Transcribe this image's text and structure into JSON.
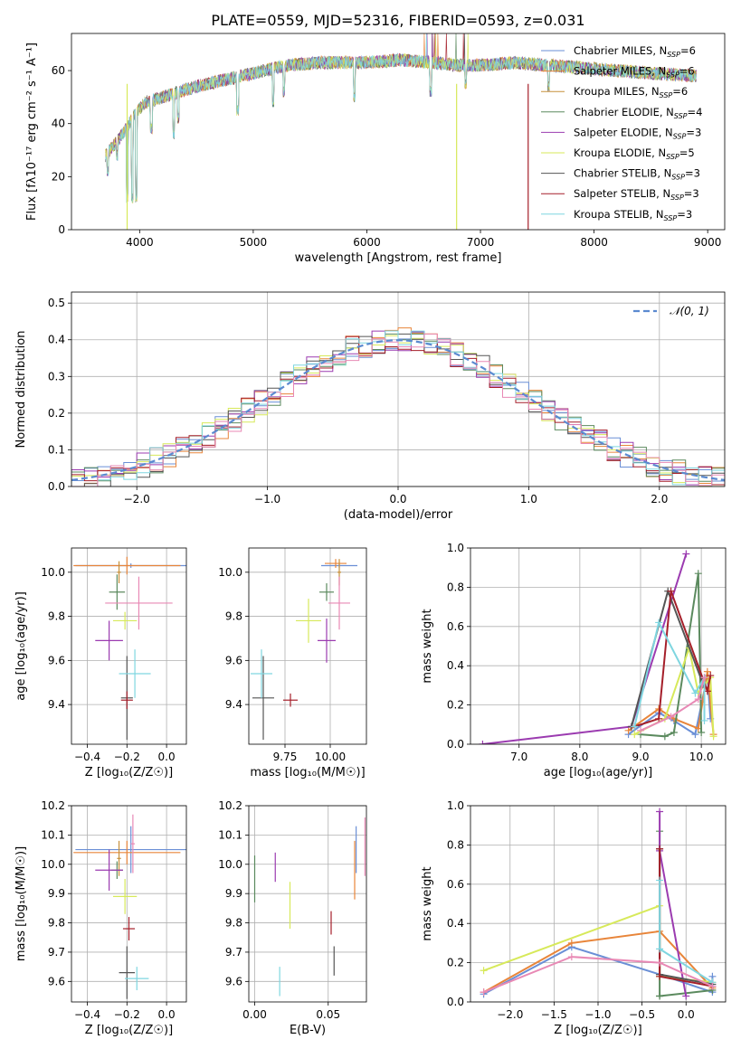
{
  "figure": {
    "title": "PLATE=0559, MJD=52316, FIBERID=0593, z=0.031"
  },
  "colors": {
    "grid": "#b0b0b0",
    "series": [
      "#6a8fd6",
      "#e8853a",
      "#c7903a",
      "#5b8a5e",
      "#9b3bb0",
      "#d7e95a",
      "#555555",
      "#a51f2a",
      "#7fd6e0",
      "#e889b5",
      "#d0d040"
    ]
  },
  "chart_data": [
    {
      "type": "line",
      "id": "spectrum",
      "xlabel": "wavelength [Angstrom, rest frame]",
      "ylabel": "Flux [fλ10⁻¹⁷ erg cm⁻² s⁻¹ A⁻¹]",
      "xlim": [
        3400,
        9150
      ],
      "ylim": [
        0,
        74
      ],
      "xticks": [
        4000,
        5000,
        6000,
        7000,
        8000,
        9000
      ],
      "yticks": [
        0,
        20,
        40,
        60
      ],
      "legend_position": "top-right",
      "legend": [
        {
          "name": "Chabrier MILES, N",
          "sub": "SSP",
          "tail": "=6"
        },
        {
          "name": "Salpeter MILES, N",
          "sub": "SSP",
          "tail": "=6"
        },
        {
          "name": "Kroupa MILES, N",
          "sub": "SSP",
          "tail": "=6"
        },
        {
          "name": "Chabrier ELODIE, N",
          "sub": "SSP",
          "tail": "=4"
        },
        {
          "name": "Salpeter ELODIE, N",
          "sub": "SSP",
          "tail": "=3"
        },
        {
          "name": "Kroupa ELODIE, N",
          "sub": "SSP",
          "tail": "=5"
        },
        {
          "name": "Chabrier STELIB, N",
          "sub": "SSP",
          "tail": "=3"
        },
        {
          "name": "Salpeter STELIB, N",
          "sub": "SSP",
          "tail": "=3"
        },
        {
          "name": "Kroupa STELIB, N",
          "sub": "SSP",
          "tail": "=3"
        }
      ],
      "continuum": {
        "x": [
          3700,
          3850,
          3950,
          4050,
          4200,
          4500,
          4800,
          5000,
          5300,
          5600,
          6000,
          6300,
          6600,
          6800,
          7000,
          7300,
          7600,
          7900,
          8200,
          8500,
          8900
        ],
        "y": [
          28,
          36,
          43,
          48,
          50,
          54,
          57,
          59,
          62,
          63,
          63,
          64,
          63,
          62,
          62,
          63,
          62,
          61,
          60,
          59,
          58
        ]
      },
      "features": [
        {
          "x": 3720,
          "y": 22
        },
        {
          "x": 3800,
          "y": 28
        },
        {
          "x": 3890,
          "y": 12
        },
        {
          "x": 3935,
          "y": 12
        },
        {
          "x": 3970,
          "y": 12
        },
        {
          "x": 4102,
          "y": 38
        },
        {
          "x": 4300,
          "y": 36
        },
        {
          "x": 4340,
          "y": 42
        },
        {
          "x": 4861,
          "y": 45
        },
        {
          "x": 5175,
          "y": 48
        },
        {
          "x": 5270,
          "y": 52
        },
        {
          "x": 5890,
          "y": 50
        },
        {
          "x": 6563,
          "y": 52
        },
        {
          "x": 6870,
          "y": 55
        },
        {
          "x": 7600,
          "y": 54
        }
      ],
      "dropouts": [
        {
          "x": 3890,
          "color_index": 5
        },
        {
          "x": 6790,
          "color_index": 5
        },
        {
          "x": 7420,
          "color_index": 7
        }
      ]
    },
    {
      "type": "step",
      "id": "residuals",
      "xlabel": "(data-model)/error",
      "ylabel": "Normed distribution",
      "xlim": [
        -2.5,
        2.5
      ],
      "ylim": [
        0,
        0.53
      ],
      "xticks": [
        -2,
        -1,
        0,
        1,
        2
      ],
      "yticks": [
        0.0,
        0.1,
        0.2,
        0.3,
        0.4,
        0.5
      ],
      "bin_width": 0.1,
      "legend": "𝒩(0, 1)",
      "legend_position": "top-right",
      "gaussian": {
        "mean": 0,
        "sigma": 1
      }
    },
    {
      "type": "scatter",
      "id": "age-vs-metallicity",
      "xlabel": "Z [log₁₀(Z/Z☉)]",
      "ylabel": "age  [log₁₀(age/yr)]",
      "xlim": [
        -0.48,
        0.1
      ],
      "ylim": [
        9.22,
        10.11
      ],
      "xticks": [
        -0.4,
        -0.2,
        0.0
      ],
      "yticks": [
        9.4,
        9.6,
        9.8,
        10.0
      ],
      "points": [
        {
          "x": -0.18,
          "y": 10.03,
          "xerr": 0.28,
          "yerr": 0.01,
          "c": 0
        },
        {
          "x": -0.2,
          "y": 10.03,
          "xerr": 0.27,
          "yerr": 0.04,
          "c": 1
        },
        {
          "x": -0.24,
          "y": 10.0,
          "xerr": 0.01,
          "yerr": 0.05,
          "c": 2
        },
        {
          "x": -0.25,
          "y": 9.91,
          "xerr": 0.04,
          "yerr": 0.08,
          "c": 3
        },
        {
          "x": -0.29,
          "y": 9.69,
          "xerr": 0.07,
          "yerr": 0.09,
          "c": 4
        },
        {
          "x": -0.21,
          "y": 9.78,
          "xerr": 0.06,
          "yerr": 0.04,
          "c": 5
        },
        {
          "x": -0.2,
          "y": 9.43,
          "xerr": 0.03,
          "yerr": 0.19,
          "c": 6
        },
        {
          "x": -0.2,
          "y": 9.42,
          "xerr": 0.03,
          "yerr": 0.04,
          "c": 7
        },
        {
          "x": -0.16,
          "y": 9.54,
          "xerr": 0.08,
          "yerr": 0.11,
          "c": 8
        },
        {
          "x": -0.14,
          "y": 9.86,
          "xerr": 0.17,
          "yerr": 0.12,
          "c": 9
        }
      ]
    },
    {
      "type": "scatter",
      "id": "age-vs-mass",
      "xlabel": "mass [log₁₀(M/M☉)]",
      "ylabel": "",
      "xlim": [
        9.55,
        10.2
      ],
      "ylim": [
        9.22,
        10.11
      ],
      "xticks": [
        9.75,
        10.0
      ],
      "tick_labels": [
        "9.75",
        "10.00"
      ],
      "yticks": [
        9.4,
        9.6,
        9.8,
        10.0
      ],
      "points": [
        {
          "x": 10.05,
          "y": 10.03,
          "xerr": 0.1,
          "yerr": 0.01,
          "c": 0
        },
        {
          "x": 10.03,
          "y": 10.04,
          "xerr": 0.06,
          "yerr": 0.02,
          "c": 1
        },
        {
          "x": 10.05,
          "y": 10.0,
          "xerr": 0.01,
          "yerr": 0.06,
          "c": 2
        },
        {
          "x": 9.98,
          "y": 9.91,
          "xerr": 0.04,
          "yerr": 0.04,
          "c": 3
        },
        {
          "x": 9.98,
          "y": 9.69,
          "xerr": 0.05,
          "yerr": 0.1,
          "c": 4
        },
        {
          "x": 9.88,
          "y": 9.78,
          "xerr": 0.07,
          "yerr": 0.1,
          "c": 5
        },
        {
          "x": 9.63,
          "y": 9.43,
          "xerr": 0.06,
          "yerr": 0.19,
          "c": 6
        },
        {
          "x": 9.78,
          "y": 9.42,
          "xerr": 0.04,
          "yerr": 0.03,
          "c": 7
        },
        {
          "x": 9.62,
          "y": 9.54,
          "xerr": 0.06,
          "yerr": 0.11,
          "c": 8
        },
        {
          "x": 10.05,
          "y": 9.86,
          "xerr": 0.06,
          "yerr": 0.12,
          "c": 9
        }
      ]
    },
    {
      "type": "line",
      "id": "mass-weight-vs-age",
      "xlabel": "age  [log₁₀(age/yr)]",
      "ylabel": "mass weight",
      "xlim": [
        6.2,
        10.4
      ],
      "ylim": [
        0,
        1.0
      ],
      "xticks": [
        7,
        8,
        9,
        10
      ],
      "yticks": [
        0.0,
        0.2,
        0.4,
        0.6,
        0.8,
        1.0
      ],
      "series": [
        {
          "c": 0,
          "x": [
            8.8,
            9.3,
            9.55,
            9.9,
            10.1,
            10.15
          ],
          "y": [
            0.05,
            0.16,
            0.12,
            0.05,
            0.35,
            0.13
          ]
        },
        {
          "c": 1,
          "x": [
            8.8,
            9.3,
            9.55,
            9.95,
            10.1,
            10.2
          ],
          "y": [
            0.07,
            0.18,
            0.13,
            0.08,
            0.37,
            0.05
          ]
        },
        {
          "c": 3,
          "x": [
            9.0,
            9.4,
            9.55,
            9.95,
            10.0
          ],
          "y": [
            0.05,
            0.04,
            0.06,
            0.87,
            0.06
          ]
        },
        {
          "c": 4,
          "x": [
            6.4,
            8.85,
            9.75
          ],
          "y": [
            0.0,
            0.09,
            0.97
          ]
        },
        {
          "c": 5,
          "x": [
            8.9,
            9.4,
            9.8,
            9.95,
            10.15,
            10.2
          ],
          "y": [
            0.05,
            0.13,
            0.49,
            0.26,
            0.34,
            0.04
          ]
        },
        {
          "c": 6,
          "x": [
            8.85,
            9.45,
            10.05
          ],
          "y": [
            0.09,
            0.78,
            0.29
          ]
        },
        {
          "c": 7,
          "x": [
            8.9,
            9.3,
            9.5,
            10.1,
            10.15
          ],
          "y": [
            0.09,
            0.13,
            0.78,
            0.27,
            0.35
          ]
        },
        {
          "c": 8,
          "x": [
            8.9,
            9.3,
            9.9,
            10.05,
            10.05
          ],
          "y": [
            0.09,
            0.62,
            0.26,
            0.34,
            0.12
          ]
        },
        {
          "c": 9,
          "x": [
            9.0,
            9.5,
            9.95,
            10.05
          ],
          "y": [
            0.07,
            0.14,
            0.23,
            0.34
          ]
        }
      ]
    },
    {
      "type": "scatter",
      "id": "mass-vs-metallicity",
      "xlabel": "Z [log₁₀(Z/Z☉)]",
      "ylabel": "mass [log₁₀(M/M☉)]",
      "xlim": [
        -0.48,
        0.1
      ],
      "ylim": [
        9.53,
        10.2
      ],
      "xticks": [
        -0.4,
        -0.2,
        0.0
      ],
      "yticks": [
        9.6,
        9.7,
        9.8,
        9.9,
        10.0,
        10.1,
        10.2
      ],
      "points": [
        {
          "x": -0.18,
          "y": 10.05,
          "xerr": 0.28,
          "yerr": 0.08,
          "c": 0
        },
        {
          "x": -0.2,
          "y": 10.04,
          "xerr": 0.27,
          "yerr": 0.04,
          "c": 1
        },
        {
          "x": -0.24,
          "y": 10.02,
          "xerr": 0.01,
          "yerr": 0.06,
          "c": 2
        },
        {
          "x": -0.25,
          "y": 9.98,
          "xerr": 0.03,
          "yerr": 0.03,
          "c": 3
        },
        {
          "x": -0.29,
          "y": 9.98,
          "xerr": 0.07,
          "yerr": 0.07,
          "c": 4
        },
        {
          "x": -0.21,
          "y": 9.89,
          "xerr": 0.06,
          "yerr": 0.06,
          "c": 5
        },
        {
          "x": -0.2,
          "y": 9.63,
          "xerr": 0.04,
          "yerr": 0.09,
          "c": 6
        },
        {
          "x": -0.19,
          "y": 9.78,
          "xerr": 0.03,
          "yerr": 0.04,
          "c": 7
        },
        {
          "x": -0.15,
          "y": 9.61,
          "xerr": 0.06,
          "yerr": 0.04,
          "c": 8
        },
        {
          "x": -0.17,
          "y": 10.07,
          "xerr": 0.01,
          "yerr": 0.1,
          "c": 9
        }
      ]
    },
    {
      "type": "scatter",
      "id": "mass-vs-ebv",
      "xlabel": "E(B-V)",
      "ylabel": "",
      "xlim": [
        -0.004,
        0.076
      ],
      "ylim": [
        9.53,
        10.2
      ],
      "xticks": [
        0.0,
        0.05
      ],
      "tick_labels": [
        "0.00",
        "0.05"
      ],
      "yticks": [
        9.6,
        9.7,
        9.8,
        9.9,
        10.0,
        10.1,
        10.2
      ],
      "points": [
        {
          "x": 0.069,
          "y": 10.05,
          "xerr": 0.0,
          "yerr": 0.08,
          "c": 0
        },
        {
          "x": 0.068,
          "y": 9.98,
          "xerr": 0.0,
          "yerr": 0.1,
          "c": 1
        },
        {
          "x": 0.0,
          "y": 9.95,
          "xerr": 0.0,
          "yerr": 0.08,
          "c": 3
        },
        {
          "x": 0.014,
          "y": 9.99,
          "xerr": 0.0,
          "yerr": 0.05,
          "c": 4
        },
        {
          "x": 0.024,
          "y": 9.86,
          "xerr": 0.0,
          "yerr": 0.08,
          "c": 5
        },
        {
          "x": 0.054,
          "y": 9.67,
          "xerr": 0.0,
          "yerr": 0.05,
          "c": 6
        },
        {
          "x": 0.052,
          "y": 9.8,
          "xerr": 0.0,
          "yerr": 0.04,
          "c": 7
        },
        {
          "x": 0.017,
          "y": 9.6,
          "xerr": 0.0,
          "yerr": 0.05,
          "c": 8
        },
        {
          "x": 0.075,
          "y": 10.06,
          "xerr": 0.0,
          "yerr": 0.1,
          "c": 9
        }
      ]
    },
    {
      "type": "line",
      "id": "mass-weight-vs-metallicity",
      "xlabel": "Z [log₁₀(Z/Z☉)]",
      "ylabel": "mass weight",
      "xlim": [
        -2.45,
        0.45
      ],
      "ylim": [
        0,
        1.0
      ],
      "xticks": [
        -2.0,
        -1.5,
        -1.0,
        -0.5,
        0.0
      ],
      "yticks": [
        0.0,
        0.2,
        0.4,
        0.6,
        0.8,
        1.0
      ],
      "series": [
        {
          "c": 0,
          "x": [
            -2.3,
            -1.3,
            -0.3,
            0.3,
            0.3
          ],
          "y": [
            0.04,
            0.28,
            0.14,
            0.05,
            0.13
          ]
        },
        {
          "c": 1,
          "x": [
            -2.3,
            -1.3,
            -0.3,
            0.3
          ],
          "y": [
            0.05,
            0.3,
            0.36,
            0.07
          ]
        },
        {
          "c": 3,
          "x": [
            -0.3,
            -0.3,
            -0.3,
            0.3
          ],
          "y": [
            0.03,
            0.87,
            0.03,
            0.06
          ]
        },
        {
          "c": 4,
          "x": [
            -0.3,
            -0.3,
            0.0
          ],
          "y": [
            0.97,
            0.77,
            0.03
          ]
        },
        {
          "c": 5,
          "x": [
            -2.3,
            -0.3,
            -0.3,
            0.3
          ],
          "y": [
            0.16,
            0.49,
            0.13,
            0.1
          ]
        },
        {
          "c": 6,
          "x": [
            -0.3,
            -0.3,
            0.3
          ],
          "y": [
            0.78,
            0.14,
            0.09
          ]
        },
        {
          "c": 7,
          "x": [
            -0.3,
            -0.3,
            0.3
          ],
          "y": [
            0.78,
            0.13,
            0.08
          ]
        },
        {
          "c": 8,
          "x": [
            -0.3,
            -0.3,
            0.3
          ],
          "y": [
            0.62,
            0.27,
            0.1
          ]
        },
        {
          "c": 9,
          "x": [
            -2.3,
            -1.3,
            -0.3,
            0.3
          ],
          "y": [
            0.05,
            0.23,
            0.2,
            0.08
          ]
        }
      ]
    }
  ]
}
